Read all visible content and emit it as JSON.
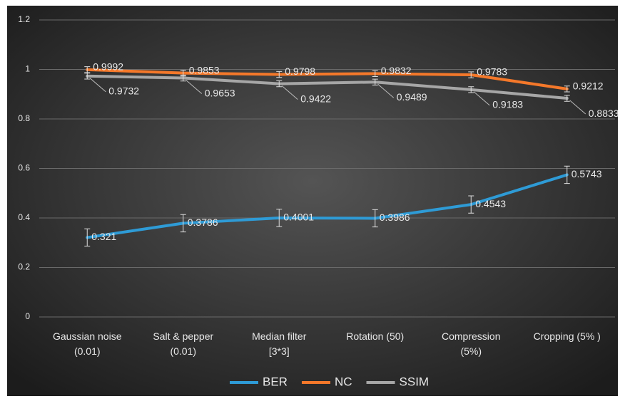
{
  "chart_data": {
    "type": "line",
    "categories": [
      "Gaussian noise\n(0.01)",
      "Salt & pepper\n(0.01)",
      "Median filter\n[3*3]",
      "Rotation (50)",
      "Compression\n(5%)",
      "Cropping (5% )"
    ],
    "series": [
      {
        "name": "BER",
        "color": "#2e9bd6",
        "values": [
          0.321,
          0.3786,
          0.4001,
          0.3986,
          0.4543,
          0.5743
        ],
        "errors": [
          0.035,
          0.035,
          0.035,
          0.035,
          0.035,
          0.035
        ]
      },
      {
        "name": "NC",
        "color": "#f4782a",
        "values": [
          0.9992,
          0.9853,
          0.9798,
          0.9832,
          0.9783,
          0.9212
        ],
        "errors": [
          0.012,
          0.012,
          0.012,
          0.012,
          0.012,
          0.012
        ]
      },
      {
        "name": "SSIM",
        "color": "#a6a6a6",
        "values": [
          0.9732,
          0.9653,
          0.9422,
          0.9489,
          0.9183,
          0.8833
        ],
        "errors": [
          0.012,
          0.012,
          0.012,
          0.012,
          0.012,
          0.012
        ]
      }
    ],
    "ylim": [
      0,
      1.2
    ],
    "yticks": [
      0,
      0.2,
      0.4,
      0.6,
      0.8,
      1,
      1.2
    ],
    "grid": true,
    "legend": "bottom"
  }
}
